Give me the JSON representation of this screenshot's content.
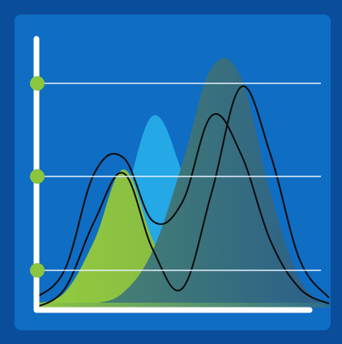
{
  "chart_data": {
    "type": "area",
    "title": "",
    "xlabel": "",
    "ylabel": "",
    "grid": true,
    "legend": "none",
    "x": [
      0,
      1,
      2,
      3,
      4,
      5,
      6,
      7,
      8,
      9,
      10
    ],
    "series": [
      {
        "values": [
          0.02,
          0.08,
          0.35,
          0.72,
          0.35,
          0.06,
          0.02,
          0.01,
          0.0,
          0.0,
          0.0
        ]
      },
      {
        "values": [
          0.0,
          0.02,
          0.15,
          0.55,
          1.0,
          0.7,
          0.15,
          0.03,
          0.0,
          0.0,
          0.0
        ]
      },
      {
        "values": [
          0.0,
          0.0,
          0.02,
          0.08,
          0.3,
          0.75,
          1.25,
          1.2,
          0.6,
          0.15,
          0.0
        ]
      }
    ],
    "outlines": [
      {
        "values": [
          0.05,
          0.2,
          0.7,
          0.78,
          0.45,
          0.55,
          1.0,
          0.8,
          0.35,
          0.1,
          0.02
        ]
      }
    ],
    "gridlines": 3
  },
  "colors": {
    "background_outer": "#0a4e9b",
    "background_inner": "#0f6dc3",
    "axis": "#ffffff",
    "grid": "#e6f0ff",
    "marker": "#8cc63f",
    "area_left": "#8cc63f",
    "area_mid": "#24a8e6",
    "area_right": "#2d6e8e",
    "outline": "#0b0b0b"
  }
}
